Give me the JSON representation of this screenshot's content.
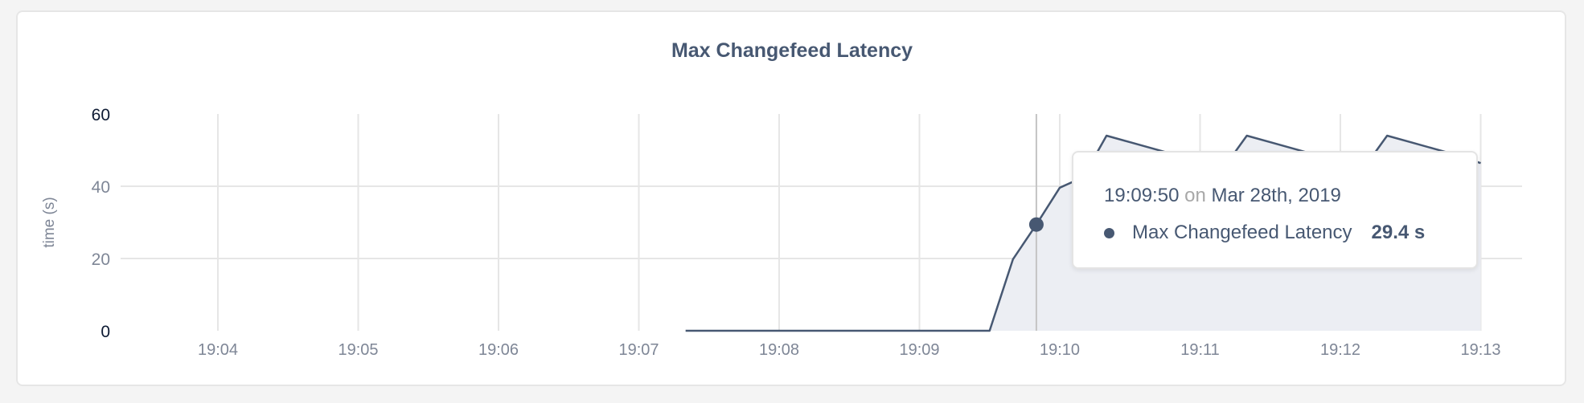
{
  "chart_data": {
    "type": "area",
    "title": "Max Changefeed Latency",
    "ylabel": "time (s)",
    "xlabel": "",
    "ylim": [
      0,
      60
    ],
    "yticks": [
      "0",
      "20",
      "40",
      "60"
    ],
    "xticks": [
      "19:04",
      "19:05",
      "19:06",
      "19:07",
      "19:08",
      "19:09",
      "19:10",
      "19:11",
      "19:12",
      "19:13"
    ],
    "grid": true,
    "series": [
      {
        "name": "Max Changefeed Latency",
        "color": "#475872",
        "fill": "#eceef3",
        "x": [
          "19:07:20",
          "19:09:30",
          "19:09:40",
          "19:09:50",
          "19:10:00",
          "19:10:10",
          "19:10:20",
          "19:10:30",
          "19:10:40",
          "19:10:50",
          "19:11:00",
          "19:11:10",
          "19:11:20",
          "19:11:30",
          "19:11:40",
          "19:11:50",
          "19:12:00",
          "19:12:10",
          "19:12:20",
          "19:12:30",
          "19:12:40",
          "19:12:50",
          "19:13:00"
        ],
        "values": [
          0,
          0,
          19.8,
          29.4,
          39.6,
          42.5,
          54,
          52.2,
          50.4,
          48.6,
          46.8,
          45,
          54,
          52.2,
          50.4,
          48.6,
          46.8,
          45,
          54,
          52.2,
          50.4,
          48.6,
          46.4
        ]
      }
    ],
    "hover": {
      "x": "19:09:50",
      "value": 29.4
    }
  },
  "tooltip": {
    "time": "19:09:50",
    "on": "on",
    "date": "Mar 28th, 2019",
    "series_name": "Max Changefeed Latency",
    "value": "29.4 s"
  }
}
